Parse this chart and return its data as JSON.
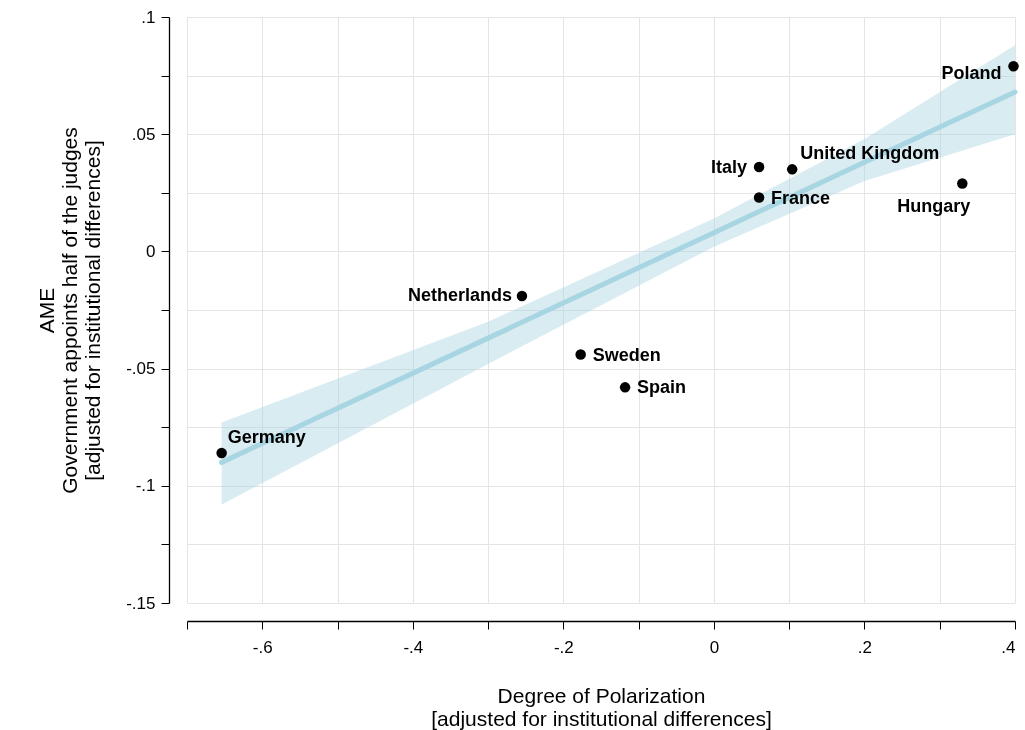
{
  "chart_data": {
    "type": "scatter",
    "xlabel": "Degree of Polarization\n[adjusted for institutional differences]",
    "ylabel": "AME\nGovernment appoints half of the judges\n[adjusted for institutional differences]",
    "xlim": [
      -0.7,
      0.4
    ],
    "ylim": [
      -0.15,
      0.1
    ],
    "xticks": [
      {
        "value": -0.7,
        "label": null
      },
      {
        "value": -0.6,
        "label": "-.6"
      },
      {
        "value": -0.5,
        "label": null
      },
      {
        "value": -0.4,
        "label": "-.4"
      },
      {
        "value": -0.3,
        "label": null
      },
      {
        "value": -0.2,
        "label": "-.2"
      },
      {
        "value": -0.1,
        "label": null
      },
      0,
      {
        "value": 0.1,
        "label": null
      },
      {
        "value": 0.2,
        "label": ".2"
      },
      {
        "value": 0.3,
        "label": null
      },
      {
        "value": 0.4,
        "label": ".4"
      }
    ],
    "yticks": [
      {
        "value": -0.15,
        "label": "-.15"
      },
      {
        "value": -0.125,
        "label": null
      },
      {
        "value": -0.1,
        "label": "-.1"
      },
      {
        "value": -0.075,
        "label": null
      },
      {
        "value": -0.05,
        "label": "-.05"
      },
      {
        "value": -0.025,
        "label": null
      },
      0,
      {
        "value": 0.025,
        "label": null
      },
      {
        "value": 0.05,
        "label": ".05"
      },
      {
        "value": 0.075,
        "label": null
      },
      {
        "value": 0.1,
        "label": ".1"
      }
    ],
    "grid": true,
    "series": [
      {
        "type": "line",
        "color": "#a8d5e2",
        "x": [
          -0.654,
          -0.3,
          0,
          0.2,
          0.4
        ],
        "values": [
          -0.09,
          -0.037,
          0.008,
          0.038,
          0.068
        ],
        "lower": [
          -0.108,
          -0.048,
          0.002,
          0.03,
          0.05
        ],
        "upper": [
          -0.073,
          -0.03,
          0.014,
          0.048,
          0.088
        ]
      },
      {
        "marker": "circle",
        "color": "#000000",
        "x": [
          0.398,
          0.06,
          0.104,
          0.06,
          0.33,
          -0.255,
          -0.177,
          -0.118,
          -0.654
        ],
        "values": [
          0.079,
          0.036,
          0.035,
          0.023,
          0.029,
          -0.019,
          -0.044,
          -0.058,
          -0.086
        ]
      }
    ],
    "annotations": [
      {
        "text": "Poland",
        "x": 0.398,
        "y": 0.079
      },
      {
        "text": "Italy",
        "x": 0.06,
        "y": 0.036
      },
      {
        "text": "United Kingdom",
        "x": 0.104,
        "y": 0.035
      },
      {
        "text": "France",
        "x": 0.06,
        "y": 0.023
      },
      {
        "text": "Hungary",
        "x": 0.33,
        "y": 0.029
      },
      {
        "text": "Netherlands",
        "x": -0.255,
        "y": -0.019
      },
      {
        "text": "Sweden",
        "x": -0.177,
        "y": -0.044
      },
      {
        "text": "Spain",
        "x": -0.118,
        "y": -0.058
      },
      {
        "text": "Germany",
        "x": -0.654,
        "y": -0.086
      }
    ]
  }
}
